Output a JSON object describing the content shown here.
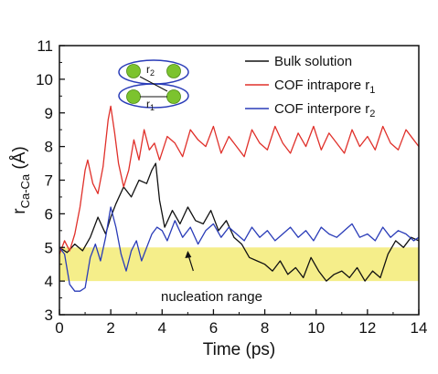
{
  "chart_data": {
    "type": "line",
    "xlabel": "Time (ps)",
    "ylabel": {
      "base": "r",
      "sub": "Ca-Ca",
      "unit": " (Å)"
    },
    "xlim": [
      0,
      14
    ],
    "ylim": [
      3,
      11
    ],
    "x_ticks": [
      "0",
      "2",
      "4",
      "6",
      "8",
      "10",
      "12",
      "14"
    ],
    "y_ticks": [
      "3",
      "4",
      "5",
      "6",
      "7",
      "8",
      "9",
      "10",
      "11"
    ],
    "grid": false,
    "legend_placement": "top-right",
    "legend": [
      {
        "base": "Bulk solution",
        "sub": ""
      },
      {
        "base": "COF intrapore r",
        "sub": "1"
      },
      {
        "base": "COF interpore r",
        "sub": "2"
      }
    ],
    "band": {
      "y_from": 4.0,
      "y_to": 5.0,
      "color": "#f5ee8a"
    },
    "annotation": {
      "text": "nucleation range",
      "arrow_to": [
        5.0,
        4.9
      ]
    },
    "inset": {
      "label_top": "r",
      "label_top_sub": "2",
      "label_bottom": "r",
      "label_bottom_sub": "1"
    },
    "series": [
      {
        "name": "Bulk solution",
        "color": "#111111",
        "x": [
          0,
          0.3,
          0.6,
          0.9,
          1.2,
          1.5,
          1.8,
          2.0,
          2.2,
          2.5,
          2.8,
          3.1,
          3.4,
          3.6,
          3.75,
          3.9,
          4.1,
          4.4,
          4.7,
          5.0,
          5.3,
          5.6,
          5.9,
          6.2,
          6.5,
          6.8,
          7.1,
          7.4,
          7.7,
          8.0,
          8.3,
          8.6,
          8.9,
          9.2,
          9.5,
          9.8,
          10.1,
          10.4,
          10.7,
          11.0,
          11.3,
          11.6,
          11.9,
          12.2,
          12.5,
          12.8,
          13.1,
          13.4,
          13.7,
          14.0
        ],
        "y": [
          5.0,
          4.85,
          5.1,
          4.9,
          5.3,
          5.9,
          5.4,
          5.9,
          6.3,
          6.8,
          6.5,
          7.0,
          6.9,
          7.3,
          7.5,
          6.4,
          5.6,
          6.1,
          5.7,
          6.2,
          5.8,
          5.7,
          6.1,
          5.5,
          5.8,
          5.3,
          5.1,
          4.7,
          4.6,
          4.5,
          4.3,
          4.6,
          4.2,
          4.4,
          4.1,
          4.7,
          4.3,
          4.0,
          4.2,
          4.3,
          4.1,
          4.4,
          4.0,
          4.3,
          4.1,
          4.8,
          5.2,
          5.0,
          5.3,
          5.2
        ]
      },
      {
        "name": "COF intrapore r1",
        "color": "#e0302a",
        "x": [
          0,
          0.2,
          0.4,
          0.6,
          0.8,
          1.0,
          1.1,
          1.3,
          1.5,
          1.7,
          1.9,
          2.0,
          2.15,
          2.3,
          2.5,
          2.7,
          2.9,
          3.1,
          3.3,
          3.5,
          3.7,
          3.9,
          4.2,
          4.5,
          4.8,
          5.1,
          5.4,
          5.7,
          6.0,
          6.3,
          6.6,
          6.9,
          7.2,
          7.5,
          7.8,
          8.1,
          8.4,
          8.7,
          9.0,
          9.3,
          9.6,
          9.9,
          10.2,
          10.5,
          10.8,
          11.1,
          11.4,
          11.7,
          12.0,
          12.3,
          12.6,
          12.9,
          13.2,
          13.5,
          13.8,
          14.0
        ],
        "y": [
          4.8,
          5.2,
          4.9,
          5.4,
          6.2,
          7.3,
          7.6,
          6.9,
          6.6,
          7.4,
          8.8,
          9.2,
          8.4,
          7.5,
          6.8,
          7.3,
          8.2,
          7.6,
          8.5,
          7.9,
          8.1,
          7.6,
          8.3,
          8.1,
          7.7,
          8.5,
          8.2,
          8.0,
          8.6,
          7.8,
          8.3,
          8.0,
          7.7,
          8.5,
          8.1,
          7.9,
          8.6,
          8.1,
          7.8,
          8.4,
          8.0,
          8.6,
          7.9,
          8.4,
          8.1,
          7.8,
          8.5,
          8.0,
          8.3,
          7.9,
          8.6,
          8.1,
          7.9,
          8.5,
          8.2,
          8.0
        ]
      },
      {
        "name": "COF interpore r2",
        "color": "#2a3cb8",
        "x": [
          0,
          0.2,
          0.4,
          0.6,
          0.8,
          1.0,
          1.2,
          1.4,
          1.6,
          1.8,
          2.0,
          2.2,
          2.4,
          2.6,
          2.8,
          3.0,
          3.2,
          3.4,
          3.6,
          3.8,
          4.0,
          4.2,
          4.5,
          4.8,
          5.1,
          5.4,
          5.7,
          6.0,
          6.3,
          6.6,
          6.9,
          7.2,
          7.5,
          7.8,
          8.1,
          8.4,
          8.7,
          9.0,
          9.3,
          9.6,
          9.9,
          10.2,
          10.5,
          10.8,
          11.1,
          11.4,
          11.7,
          12.0,
          12.3,
          12.6,
          12.9,
          13.2,
          13.5,
          13.8,
          14.0
        ],
        "y": [
          5.0,
          4.8,
          3.9,
          3.7,
          3.7,
          3.8,
          4.7,
          5.1,
          4.6,
          5.3,
          6.2,
          5.6,
          4.8,
          4.3,
          4.9,
          5.2,
          4.6,
          5.0,
          5.4,
          5.6,
          5.5,
          5.2,
          5.8,
          5.3,
          5.6,
          5.1,
          5.5,
          5.7,
          5.3,
          5.6,
          5.4,
          5.2,
          5.6,
          5.3,
          5.5,
          5.2,
          5.4,
          5.6,
          5.3,
          5.5,
          5.2,
          5.6,
          5.4,
          5.3,
          5.5,
          5.7,
          5.3,
          5.4,
          5.2,
          5.6,
          5.3,
          5.5,
          5.4,
          5.2,
          5.3
        ]
      }
    ]
  }
}
